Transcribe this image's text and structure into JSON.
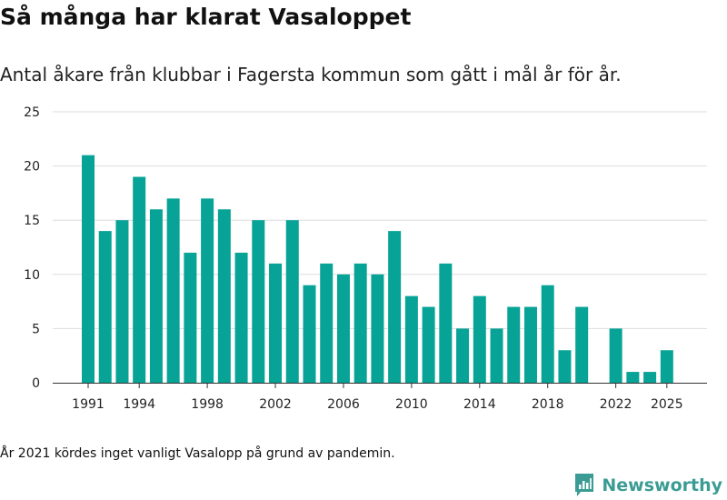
{
  "title": "Så många har klarat Vasaloppet",
  "subtitle": "Antal åkare från klubbar i Fagersta kommun som gått i mål år för år.",
  "footnote": "År 2021 kördes inget vanligt Vasalopp på grund av pandemin.",
  "brand": {
    "name": "Newsworthy",
    "icon": "newsworthy-logo-icon"
  },
  "colors": {
    "bar": "#07a396",
    "grid": "#dddddd",
    "axis": "#333333"
  },
  "chart_data": {
    "type": "bar",
    "title": "Så många har klarat Vasaloppet",
    "subtitle": "Antal åkare från klubbar i Fagersta kommun som gått i mål år för år.",
    "xlabel": "",
    "ylabel": "",
    "ylim": [
      0,
      25
    ],
    "yticks": [
      0,
      5,
      10,
      15,
      20,
      25
    ],
    "xticks": [
      1991,
      1994,
      1998,
      2002,
      2006,
      2010,
      2014,
      2018,
      2022,
      2025
    ],
    "grid": true,
    "categories": [
      1991,
      1992,
      1993,
      1994,
      1995,
      1996,
      1997,
      1998,
      1999,
      2000,
      2001,
      2002,
      2003,
      2004,
      2005,
      2006,
      2007,
      2008,
      2009,
      2010,
      2011,
      2012,
      2013,
      2014,
      2015,
      2016,
      2017,
      2018,
      2019,
      2020,
      2021,
      2022,
      2023,
      2024,
      2025
    ],
    "values": [
      21,
      14,
      15,
      19,
      16,
      17,
      12,
      17,
      16,
      12,
      15,
      11,
      15,
      9,
      11,
      10,
      11,
      10,
      14,
      8,
      7,
      11,
      5,
      8,
      5,
      7,
      7,
      9,
      3,
      7,
      null,
      5,
      1,
      1,
      3
    ]
  }
}
